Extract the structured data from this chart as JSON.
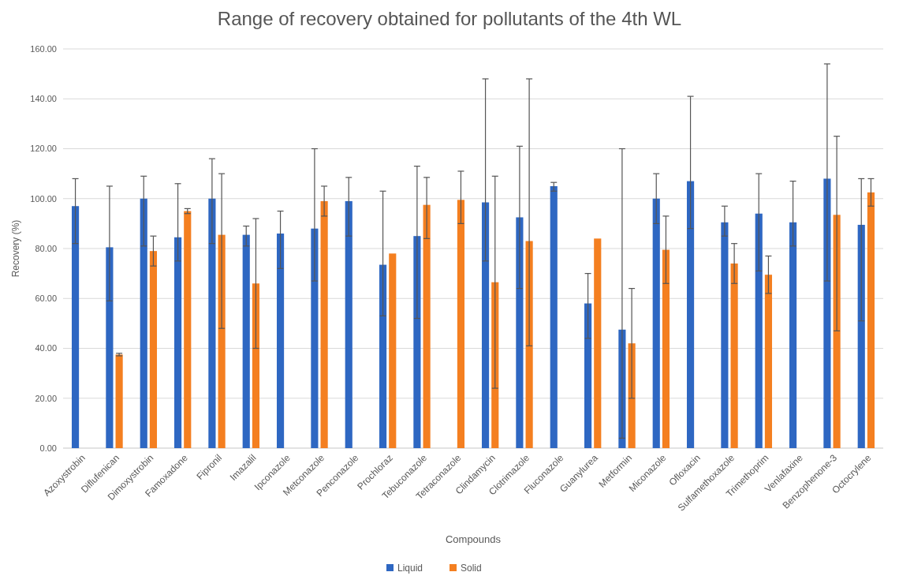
{
  "chart_data": {
    "type": "bar",
    "title": "Range of recovery obtained for pollutants of the 4th WL",
    "xlabel": "Compounds",
    "ylabel": "Recovery (%)",
    "categories": [
      "Azoxystrobin",
      "Diflufenican",
      "Dimoxystrobin",
      "Famoxadone",
      "Fipronil",
      "Imazalil",
      "Ipconazole",
      "Metconazole",
      "Penconazole",
      "Prochloraz",
      "Tebuconazole",
      "Tetraconazole",
      "Clindamycin",
      "Clotrimazole",
      "Fluconazole",
      "Guanylurea",
      "Metformin",
      "Miconazole",
      "Ofloxacin",
      "Sulfamethoxazole",
      "Trimethoprim",
      "Venlafaxine",
      "Benzophenone-3",
      "Octocrylene"
    ],
    "series": [
      {
        "name": "Liquid",
        "color": "#2e67c2",
        "values": [
          97,
          80.5,
          100,
          84.5,
          100,
          85.5,
          86,
          88,
          99,
          73.5,
          85,
          null,
          98.5,
          92.5,
          105,
          58,
          47.5,
          100,
          107,
          90.5,
          94,
          90.5,
          108,
          89.5
        ],
        "errors": [
          [
            82,
            108
          ],
          [
            59,
            105
          ],
          [
            81,
            109
          ],
          [
            75,
            106
          ],
          [
            82,
            116
          ],
          [
            81,
            89
          ],
          [
            72,
            95
          ],
          [
            67,
            120
          ],
          [
            85,
            108.5
          ],
          [
            53,
            103
          ],
          [
            52,
            113
          ],
          null,
          [
            75,
            148
          ],
          [
            64,
            121
          ],
          [
            103,
            106.5
          ],
          [
            44,
            70
          ],
          [
            4,
            120
          ],
          [
            90,
            110
          ],
          [
            88,
            141
          ],
          [
            85,
            97
          ],
          [
            71,
            110
          ],
          [
            81,
            107
          ],
          [
            67,
            154
          ],
          [
            51,
            108
          ]
        ]
      },
      {
        "name": "Solid",
        "color": "#f47f20",
        "values": [
          null,
          37.5,
          79,
          95,
          85.5,
          66,
          null,
          99,
          null,
          78,
          97.5,
          99.5,
          66.5,
          83,
          null,
          84,
          42,
          79.5,
          null,
          74,
          69.5,
          null,
          93.5,
          102.5
        ],
        "errors": [
          null,
          [
            37,
            38
          ],
          [
            73,
            85
          ],
          [
            94,
            96
          ],
          [
            48,
            110
          ],
          [
            40,
            92
          ],
          null,
          [
            93,
            105
          ],
          null,
          null,
          [
            84,
            108.5
          ],
          [
            90,
            111
          ],
          [
            24,
            109
          ],
          [
            41,
            148
          ],
          null,
          null,
          [
            20,
            64
          ],
          [
            66,
            93
          ],
          null,
          [
            66,
            82
          ],
          [
            62,
            77
          ],
          null,
          [
            47,
            125
          ],
          [
            97,
            108
          ]
        ]
      }
    ],
    "ylim": [
      0,
      160
    ],
    "yticks": [
      {
        "value": 0,
        "label": "0.00"
      },
      {
        "value": 20,
        "label": "20.00"
      },
      {
        "value": 40,
        "label": "40.00"
      },
      {
        "value": 60,
        "label": "60.00"
      },
      {
        "value": 80,
        "label": "80.00"
      },
      {
        "value": 100,
        "label": "100.00"
      },
      {
        "value": 120,
        "label": "120.00"
      },
      {
        "value": 140,
        "label": "140.00"
      },
      {
        "value": 160,
        "label": "160.00"
      }
    ],
    "grid": "y",
    "legend": "bottom"
  }
}
